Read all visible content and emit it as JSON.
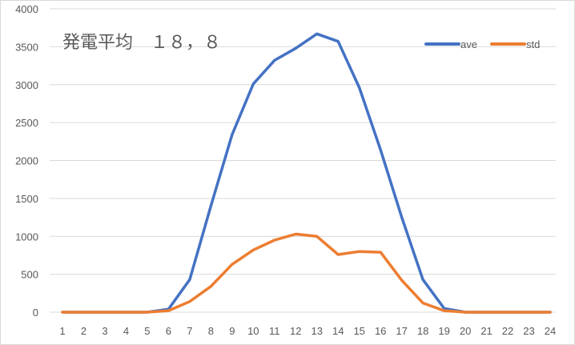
{
  "chart_data": {
    "type": "line",
    "title": "発電平均　１８，８",
    "xlabel": "",
    "ylabel": "",
    "categories": [
      "1",
      "2",
      "3",
      "4",
      "5",
      "6",
      "7",
      "8",
      "9",
      "10",
      "11",
      "12",
      "13",
      "14",
      "15",
      "16",
      "17",
      "18",
      "19",
      "20",
      "21",
      "22",
      "23",
      "24"
    ],
    "series": [
      {
        "name": "ave",
        "color": "#4472C4",
        "values": [
          0,
          0,
          0,
          0,
          0,
          40,
          430,
          1400,
          2340,
          3010,
          3320,
          3480,
          3670,
          3570,
          2960,
          2140,
          1250,
          430,
          50,
          0,
          0,
          0,
          0,
          0
        ]
      },
      {
        "name": "std",
        "color": "#ED7D31",
        "values": [
          0,
          0,
          0,
          0,
          0,
          20,
          140,
          340,
          630,
          820,
          950,
          1030,
          1000,
          760,
          800,
          790,
          420,
          120,
          20,
          0,
          0,
          0,
          0,
          0
        ]
      }
    ],
    "ylim": [
      0,
      4000
    ],
    "yticks": [
      0,
      500,
      1000,
      1500,
      2000,
      2500,
      3000,
      3500,
      4000
    ],
    "grid": true,
    "legend_position": "top-right"
  }
}
